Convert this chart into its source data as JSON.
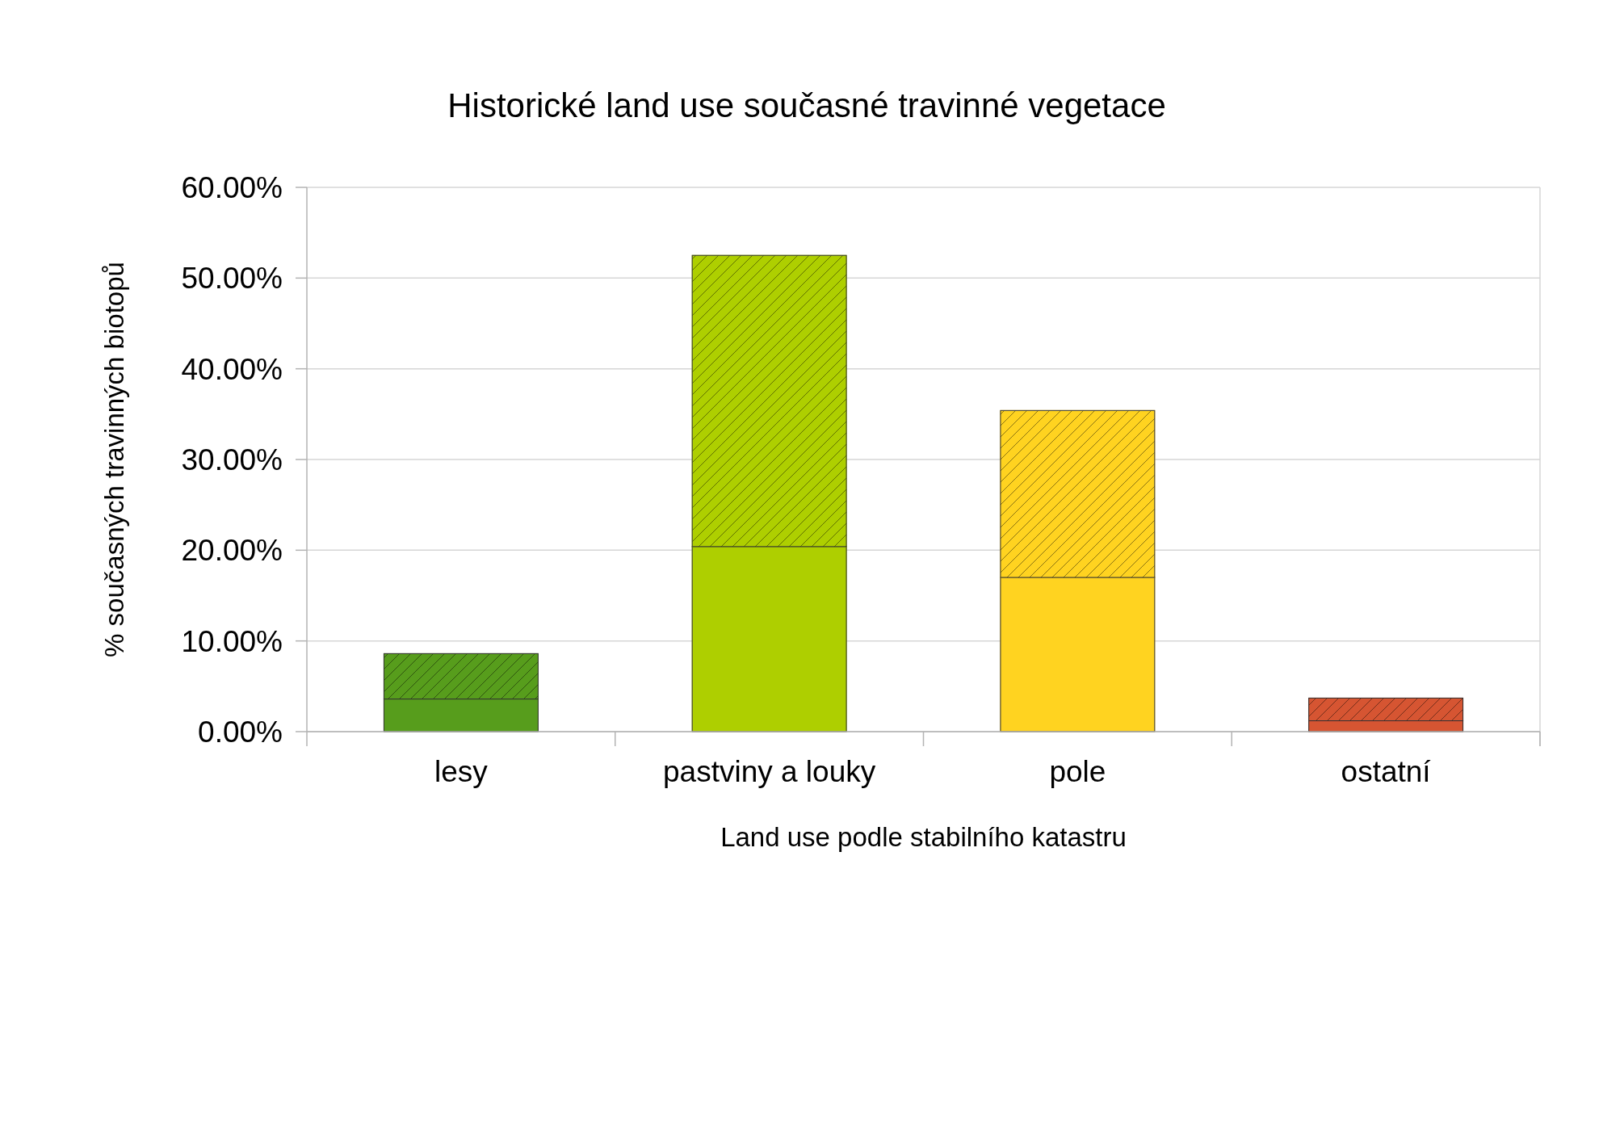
{
  "chart_data": {
    "type": "bar",
    "stacked": true,
    "title": "Historické land use současné travinné vegetace",
    "xlabel": "Land use podle stabilního katastru",
    "ylabel": "% současných travinných biotopů",
    "categories": [
      "lesy",
      "pastviny a louky",
      "pole",
      "ostatní"
    ],
    "series": [
      {
        "colors": [
          "#579d1c",
          "#aecf00",
          "#ffd320",
          "#d65532"
        ],
        "values": [
          3.6,
          20.4,
          17.0,
          1.2
        ]
      },
      {
        "colors": [
          "#579d1c",
          "#aecf00",
          "#ffd320",
          "#d65532"
        ],
        "values": [
          5.0,
          32.1,
          18.4,
          2.5
        ]
      }
    ],
    "ylim": [
      0,
      60
    ],
    "yticks": [
      {
        "value": 0,
        "label": "0.00%"
      },
      {
        "value": 10,
        "label": "10.00%"
      },
      {
        "value": 20,
        "label": "20.00%"
      },
      {
        "value": 30,
        "label": "30.00%"
      },
      {
        "value": 40,
        "label": "40.00%"
      },
      {
        "value": 50,
        "label": "50.00%"
      },
      {
        "value": 60,
        "label": "60.00%"
      }
    ],
    "grid": "y"
  }
}
